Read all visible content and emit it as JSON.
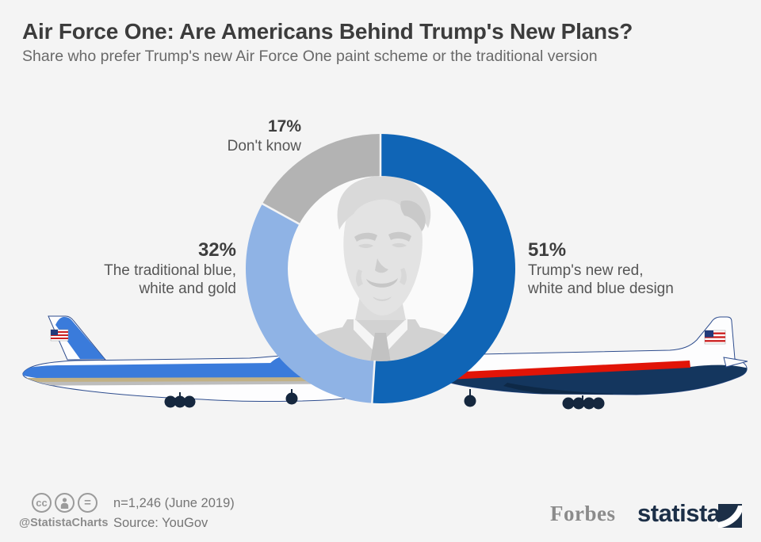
{
  "header": {
    "title": "Air Force One: Are Americans Behind Trump's New Plans?",
    "subtitle": "Share who prefer Trump's new Air Force One paint scheme or the traditional version"
  },
  "chart_data": {
    "type": "pie",
    "variant": "donut",
    "unit": "%",
    "start_angle": "top, clockwise",
    "categories": [
      "Trump's new red, white and blue design",
      "The traditional blue, white and gold",
      "Don't know"
    ],
    "values": [
      51,
      32,
      17
    ],
    "slices": [
      {
        "label": "Trump's new red, white and blue design",
        "value": 51,
        "color": "#1065b6"
      },
      {
        "label": "The traditional blue, white and gold",
        "value": 32,
        "color": "#8fb3e5"
      },
      {
        "label": "Don't know",
        "value": 17,
        "color": "#b3b3b3"
      }
    ],
    "center_image": "grayscale portrait of Donald Trump",
    "legend_position": "callouts around donut"
  },
  "callouts": {
    "new_design": {
      "pct": "51%",
      "line1": "Trump's new red,",
      "line2": "white and blue design"
    },
    "traditional": {
      "pct": "32%",
      "line1": "The traditional blue,",
      "line2": "white and gold"
    },
    "dont_know": {
      "pct": "17%",
      "line1": "Don't know",
      "line2": ""
    }
  },
  "illustrations": {
    "left_plane": "traditional-air-force-one-side-view",
    "right_plane": "trump-redesign-air-force-one-side-view",
    "center": "trump-portrait-grayscale"
  },
  "footer": {
    "icons": {
      "cc": "cc",
      "eq": "="
    },
    "handle": "@StatistaCharts",
    "sample_note": "n=1,246 (June 2019)",
    "source": "Source: YouGov",
    "brands": {
      "forbes": "Forbes",
      "statista": "statista"
    }
  },
  "colors": {
    "background": "#f4f4f4",
    "slice_new": "#1065b6",
    "slice_traditional": "#8fb3e5",
    "slice_dont_know": "#b3b3b3",
    "statista_navy": "#1c2f47",
    "plane_red": "#e11407",
    "plane_navy": "#14365e",
    "plane_blue": "#3a7bdb",
    "plane_gold": "#c2b185"
  }
}
